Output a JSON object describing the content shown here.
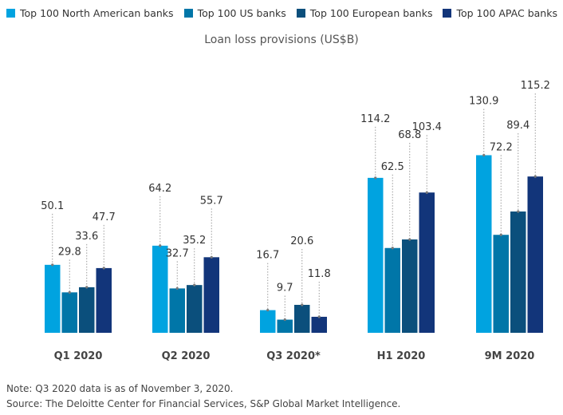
{
  "chart_data": {
    "type": "bar",
    "title": "Loan loss provisions (US$B)",
    "categories": [
      "Q1 2020",
      "Q2 2020",
      "Q3 2020*",
      "H1 2020",
      "9M 2020"
    ],
    "series": [
      {
        "name": "Top 100 North American banks",
        "color": "#00a3e0",
        "values": [
          50.1,
          64.2,
          16.7,
          114.2,
          130.9
        ]
      },
      {
        "name": "Top 100 US banks",
        "color": "#0076a8",
        "values": [
          29.8,
          32.7,
          9.7,
          62.5,
          72.2
        ]
      },
      {
        "name": "Top 100 European banks",
        "color": "#0b4f7c",
        "values": [
          33.6,
          35.2,
          20.6,
          68.8,
          89.4
        ]
      },
      {
        "name": "Top 100 APAC banks",
        "color": "#12357a",
        "values": [
          47.7,
          55.7,
          11.8,
          103.4,
          115.2
        ]
      }
    ],
    "ylim": [
      0,
      140
    ],
    "xlabel": "",
    "ylabel": ""
  },
  "footer": {
    "note": "Note: Q3 2020 data is as of November 3, 2020.",
    "source": "Source: The Deloitte Center for Financial Services, S&P Global Market Intelligence."
  }
}
